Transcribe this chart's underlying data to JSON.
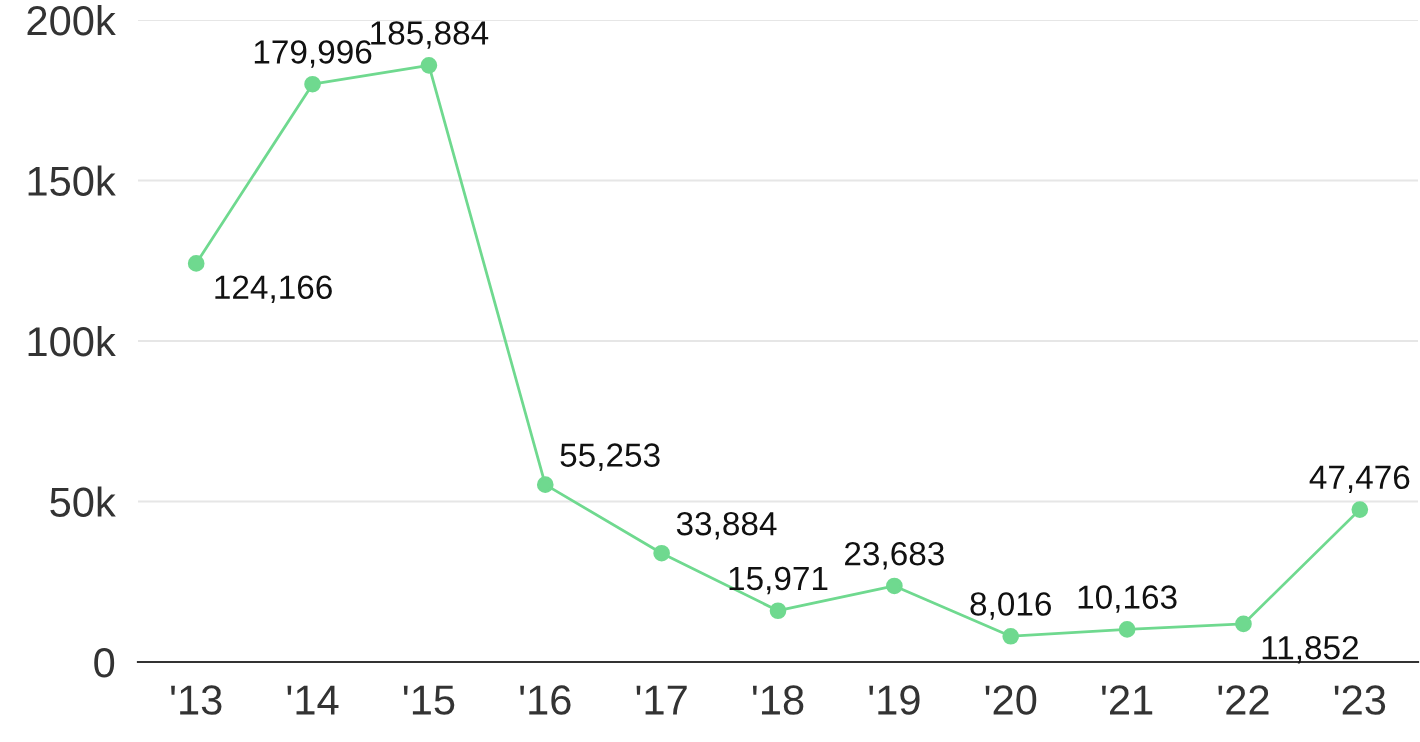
{
  "chart_data": {
    "type": "line",
    "categories": [
      "'13",
      "'14",
      "'15",
      "'16",
      "'17",
      "'18",
      "'19",
      "'20",
      "'21",
      "'22",
      "'23"
    ],
    "series": [
      {
        "color": "#6fd98f",
        "values": [
          124166,
          179996,
          185884,
          55253,
          33884,
          15971,
          23683,
          8016,
          10163,
          11852,
          47476
        ],
        "value_labels": [
          "124,166",
          "179,996",
          "185,884",
          "55,253",
          "33,884",
          "15,971",
          "23,683",
          "8,016",
          "10,163",
          "11,852",
          "47,476"
        ]
      }
    ],
    "ylim": [
      0,
      200000
    ],
    "yticks": [
      0,
      {
        "value": 50000,
        "label": "50k"
      },
      {
        "value": 100000,
        "label": "100k"
      },
      {
        "value": 150000,
        "label": "150k"
      },
      {
        "value": 200000,
        "label": "200k"
      }
    ],
    "grid": "y",
    "marker": "circle",
    "line_style": "solid",
    "legend": false
  }
}
